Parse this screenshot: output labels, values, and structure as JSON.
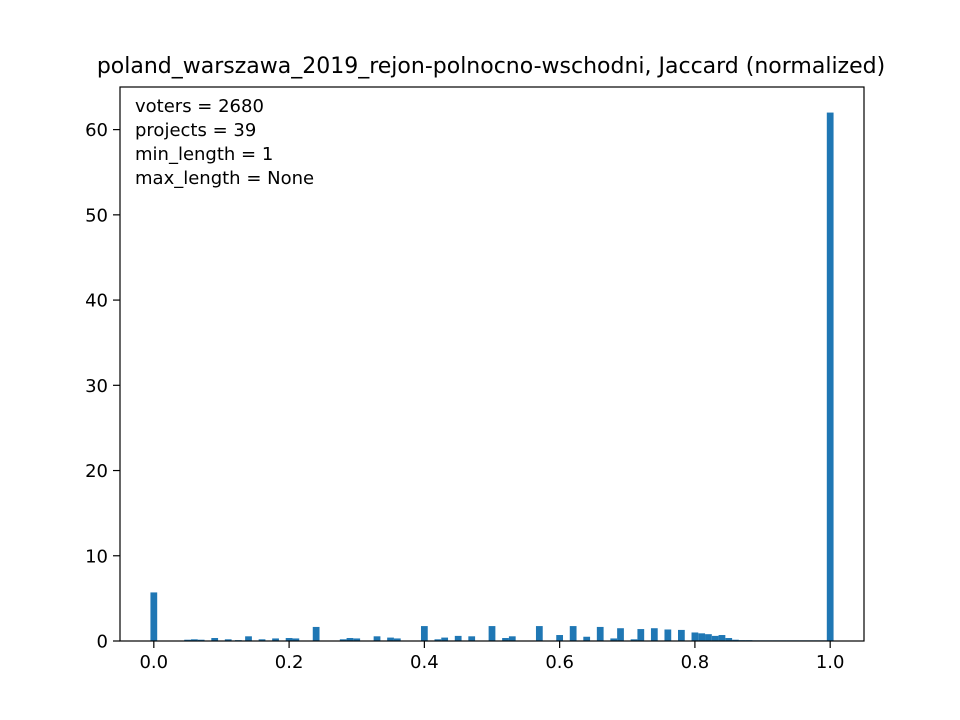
{
  "chart_data": {
    "type": "bar",
    "title": "poland_warszawa_2019_rejon-polnocno-wschodni, Jaccard (normalized)",
    "xlabel": "",
    "ylabel": "",
    "xlim": [
      -0.05,
      1.05
    ],
    "ylim": [
      0,
      65
    ],
    "xticks": [
      0.0,
      0.2,
      0.4,
      0.6,
      0.8,
      1.0
    ],
    "xtick_labels": [
      "0.0",
      "0.2",
      "0.4",
      "0.6",
      "0.8",
      "1.0"
    ],
    "yticks": [
      0,
      10,
      20,
      30,
      40,
      50,
      60
    ],
    "ytick_labels": [
      "0",
      "10",
      "20",
      "30",
      "40",
      "50",
      "60"
    ],
    "grid": false,
    "legend": "none",
    "bar_color": "#1f77b4",
    "bin_width": 0.01,
    "annotations": [
      "voters = 2680",
      "projects = 39",
      "min_length = 1",
      "max_length = None"
    ],
    "series": [
      {
        "x": [
          0.0,
          0.05,
          0.06,
          0.07,
          0.09,
          0.11,
          0.125,
          0.14,
          0.16,
          0.18,
          0.2,
          0.21,
          0.24,
          0.28,
          0.29,
          0.3,
          0.33,
          0.35,
          0.36,
          0.4,
          0.42,
          0.43,
          0.45,
          0.47,
          0.5,
          0.52,
          0.53,
          0.57,
          0.6,
          0.62,
          0.64,
          0.66,
          0.68,
          0.69,
          0.71,
          0.72,
          0.74,
          0.76,
          0.78,
          0.8,
          0.81,
          0.82,
          0.83,
          0.84,
          0.85,
          0.86,
          0.87,
          0.88,
          0.89,
          0.9,
          0.91,
          0.92,
          0.93,
          0.94,
          0.95,
          0.96,
          0.97,
          0.98,
          0.99,
          1.0
        ],
        "values": [
          5.7,
          0.15,
          0.2,
          0.15,
          0.35,
          0.2,
          0.1,
          0.55,
          0.2,
          0.3,
          0.35,
          0.3,
          1.65,
          0.2,
          0.35,
          0.3,
          0.55,
          0.4,
          0.3,
          1.75,
          0.2,
          0.4,
          0.6,
          0.55,
          1.75,
          0.35,
          0.55,
          1.75,
          0.7,
          1.75,
          0.5,
          1.65,
          0.3,
          1.5,
          0.2,
          1.4,
          1.5,
          1.35,
          1.3,
          1.0,
          0.9,
          0.8,
          0.6,
          0.7,
          0.35,
          0.15,
          0.1,
          0.1,
          0.08,
          0.08,
          0.08,
          0.08,
          0.08,
          0.08,
          0.08,
          0.08,
          0.08,
          0.08,
          0.08,
          62.0
        ]
      }
    ]
  }
}
